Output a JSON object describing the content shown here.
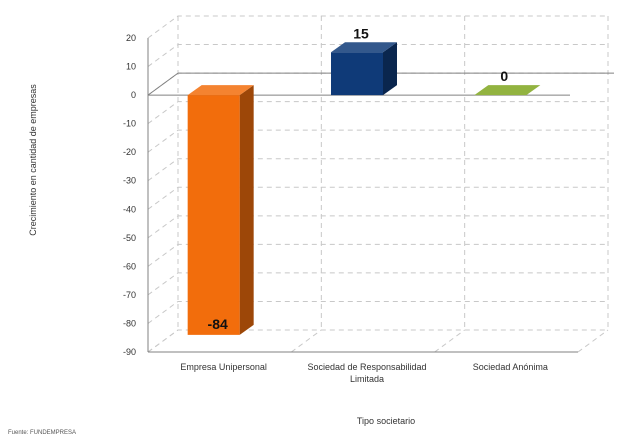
{
  "chart_data": {
    "type": "bar",
    "categories": [
      "Empresa Unipersonal",
      "Sociedad de Responsabilidad Limitada",
      "Sociedad Anónima"
    ],
    "category_lines": [
      [
        "Empresa Unipersonal"
      ],
      [
        "Sociedad de Responsabilidad",
        "Limitada"
      ],
      [
        "Sociedad Anónima"
      ]
    ],
    "values": [
      -84,
      15,
      0
    ],
    "data_labels": [
      "-84",
      "15",
      "0"
    ],
    "colors": [
      "#f26d0c",
      "#0f3a78",
      "#7fa61e"
    ],
    "xlabel": "Tipo societario",
    "ylabel": "Crecimiento en cantidad de empresas",
    "ylim": [
      -90,
      20
    ],
    "yticks": [
      20,
      10,
      0,
      -10,
      -20,
      -30,
      -40,
      -50,
      -60,
      -70,
      -80,
      -90
    ],
    "grid": true,
    "style": "3d-bar"
  },
  "source_note": "Fuente: FUNDEMPRESA"
}
